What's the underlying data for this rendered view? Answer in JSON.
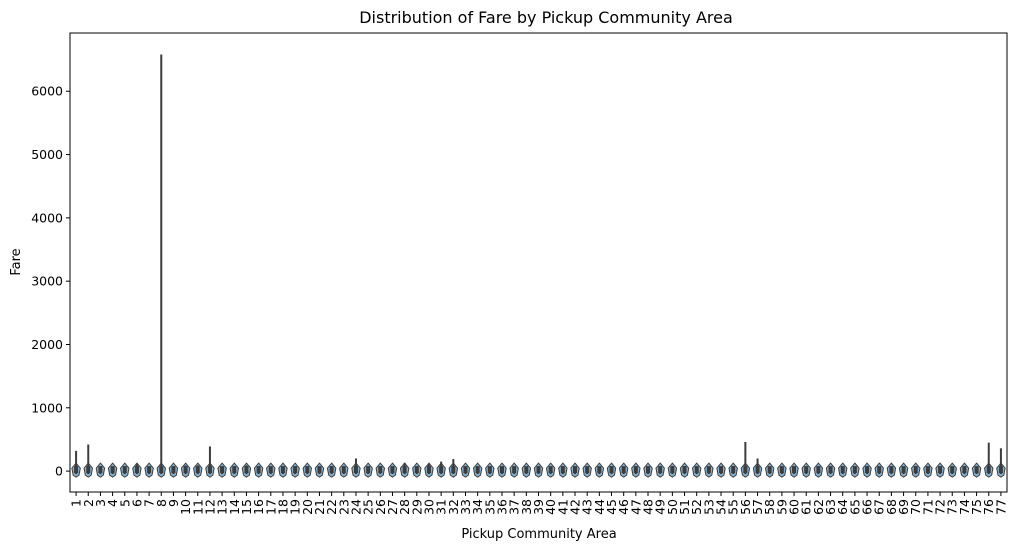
{
  "chart_data": {
    "type": "violin",
    "title": "Distribution of Fare by Pickup Community Area",
    "xlabel": "Pickup Community Area",
    "ylabel": "Fare",
    "ylim": [
      -330,
      6920
    ],
    "yticks": [
      0,
      1000,
      2000,
      3000,
      4000,
      5000,
      6000
    ],
    "grid": false,
    "legend": "none",
    "colors": {
      "violin": "#1f77b4",
      "inner": "#3c3c3c",
      "axis": "#000000"
    },
    "categories": [
      "1",
      "2",
      "3",
      "4",
      "5",
      "6",
      "7",
      "8",
      "9",
      "10",
      "11",
      "12",
      "13",
      "14",
      "15",
      "16",
      "17",
      "18",
      "19",
      "20",
      "21",
      "22",
      "23",
      "24",
      "25",
      "26",
      "27",
      "28",
      "29",
      "30",
      "31",
      "32",
      "33",
      "34",
      "35",
      "36",
      "37",
      "38",
      "39",
      "40",
      "41",
      "42",
      "43",
      "44",
      "45",
      "46",
      "47",
      "48",
      "49",
      "50",
      "51",
      "52",
      "53",
      "54",
      "55",
      "56",
      "57",
      "58",
      "59",
      "60",
      "61",
      "62",
      "63",
      "64",
      "65",
      "66",
      "67",
      "68",
      "69",
      "70",
      "71",
      "72",
      "73",
      "74",
      "75",
      "76",
      "77"
    ],
    "max_values": [
      320,
      420,
      60,
      60,
      30,
      110,
      60,
      6580,
      50,
      90,
      90,
      390,
      50,
      50,
      90,
      50,
      50,
      40,
      50,
      50,
      70,
      40,
      50,
      200,
      50,
      50,
      50,
      130,
      50,
      110,
      150,
      190,
      70,
      50,
      50,
      50,
      50,
      50,
      50,
      50,
      50,
      50,
      50,
      50,
      60,
      40,
      50,
      60,
      40,
      80,
      80,
      40,
      50,
      50,
      80,
      460,
      200,
      60,
      40,
      50,
      50,
      50,
      50,
      50,
      50,
      50,
      50,
      50,
      50,
      50,
      50,
      40,
      50,
      50,
      40,
      450,
      360
    ]
  }
}
